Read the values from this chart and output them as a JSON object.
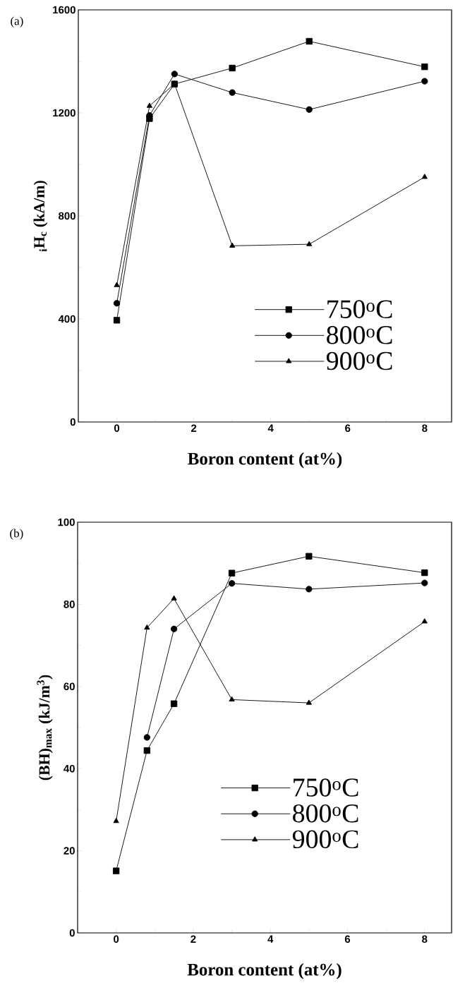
{
  "chart_data": [
    {
      "type": "line",
      "title": "(a)",
      "xlabel": "Boron content (at%)",
      "ylabel": "$_{i}$H$_{c}$ (kA/m)",
      "x": [
        0,
        0.85,
        1.5,
        3,
        5,
        8
      ],
      "xlim": [
        -1,
        8.7
      ],
      "xticks": [
        0,
        2,
        4,
        6,
        8
      ],
      "ylim": [
        0,
        1600
      ],
      "yticks": [
        0,
        400,
        800,
        1200,
        1600
      ],
      "legend": "bottom right",
      "line_style": "solid",
      "grid": false,
      "series": [
        {
          "name": "750$^{o}$C",
          "color": "#000000",
          "marker": "square",
          "values": [
            395,
            1178,
            1312,
            1374,
            1478,
            1379
          ]
        },
        {
          "name": "800$^{o}$C",
          "color": "#000000",
          "marker": "circle",
          "values": [
            461,
            1190,
            1351,
            1279,
            1213,
            1323
          ]
        },
        {
          "name": "900$^{o}$C",
          "color": "#000000",
          "marker": "triangle",
          "values": [
            531,
            1227,
            1313,
            684,
            690,
            951
          ]
        }
      ]
    },
    {
      "type": "line",
      "title": "(b)",
      "xlabel": "Boron content (at%)",
      "ylabel": "(BH)$_{max}$ (kJ/m$^{3}$)",
      "x": [
        0,
        0.8,
        1.5,
        3,
        5,
        8
      ],
      "xlim": [
        -1,
        8.7
      ],
      "xticks": [
        0,
        2,
        4,
        6,
        8
      ],
      "ylim": [
        0,
        100
      ],
      "yticks": [
        0,
        20,
        40,
        60,
        80,
        100
      ],
      "legend": "bottom",
      "line_style": "solid",
      "grid": false,
      "series": [
        {
          "name": "750$^{o}$C",
          "color": "#000000",
          "marker": "square",
          "values": [
            15.1,
            44.4,
            55.8,
            87.6,
            91.7,
            87.7
          ]
        },
        {
          "name": "800$^{o}$C",
          "color": "#000000",
          "marker": "circle",
          "values": [
            null,
            47.6,
            74.0,
            85.1,
            83.7,
            85.2
          ]
        },
        {
          "name": "900$^{o}$C",
          "color": "#000000",
          "marker": "triangle",
          "values": [
            27.2,
            74.3,
            81.4,
            56.8,
            56.0,
            75.8
          ]
        }
      ]
    }
  ]
}
